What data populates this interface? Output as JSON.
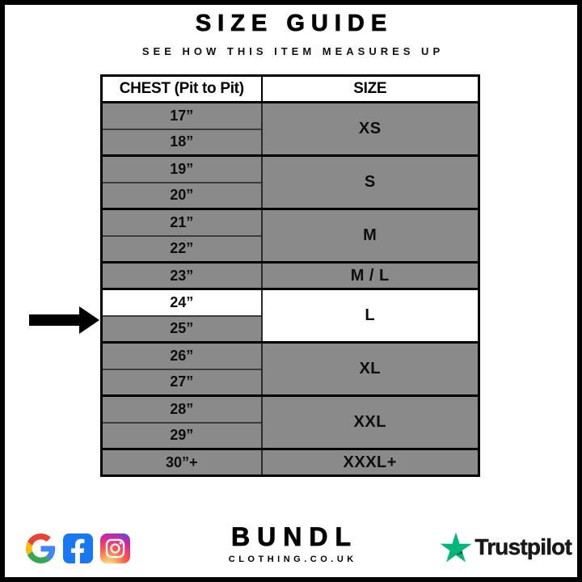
{
  "page": {
    "title": "SIZE GUIDE",
    "subtitle": "SEE HOW THIS ITEM MEASURES UP"
  },
  "chart_data": {
    "type": "table",
    "title": "SIZE GUIDE",
    "columns": [
      "CHEST (Pit to Pit)",
      "SIZE"
    ],
    "rows": [
      [
        "17”",
        "XS"
      ],
      [
        "18”",
        "XS"
      ],
      [
        "19”",
        "S"
      ],
      [
        "20”",
        "S"
      ],
      [
        "21”",
        "M"
      ],
      [
        "22”",
        "M"
      ],
      [
        "23”",
        "M / L"
      ],
      [
        "24”",
        "L"
      ],
      [
        "25”",
        "L"
      ],
      [
        "26”",
        "XL"
      ],
      [
        "27”",
        "XL"
      ],
      [
        "28”",
        "XXL"
      ],
      [
        "29”",
        "XXL"
      ],
      [
        "30”+",
        "XXXL+"
      ]
    ],
    "highlighted_row": [
      "24”",
      "L"
    ]
  },
  "table": {
    "columns": [
      "CHEST (Pit to Pit)",
      "SIZE"
    ],
    "groups": [
      {
        "size": "XS",
        "chest": [
          "17”",
          "18”"
        ]
      },
      {
        "size": "S",
        "chest": [
          "19”",
          "20”"
        ]
      },
      {
        "size": "M",
        "chest": [
          "21”",
          "22”"
        ]
      },
      {
        "size": "M / L",
        "chest": [
          "23”"
        ]
      },
      {
        "size": "L",
        "chest": [
          "24”",
          "25”"
        ],
        "highlighted": true,
        "highlighted_chest": "24”"
      },
      {
        "size": "XL",
        "chest": [
          "26”",
          "27”"
        ]
      },
      {
        "size": "XXL",
        "chest": [
          "28”",
          "29”"
        ]
      },
      {
        "size": "XXXL+",
        "chest": [
          "30”+"
        ]
      }
    ]
  },
  "footer": {
    "social_icons": [
      "google",
      "facebook",
      "instagram"
    ],
    "brand_name": "BUNDL",
    "brand_tagline": "CLOTHING.CO.UK",
    "trustpilot_label": "Trustpilot"
  },
  "colors": {
    "row_gray": "#8a8a8a",
    "highlight_white": "#ffffff",
    "border_black": "#000000",
    "facebook_blue": "#1877f2",
    "trustpilot_green": "#00b67a",
    "trustpilot_shadow": "#005128"
  }
}
